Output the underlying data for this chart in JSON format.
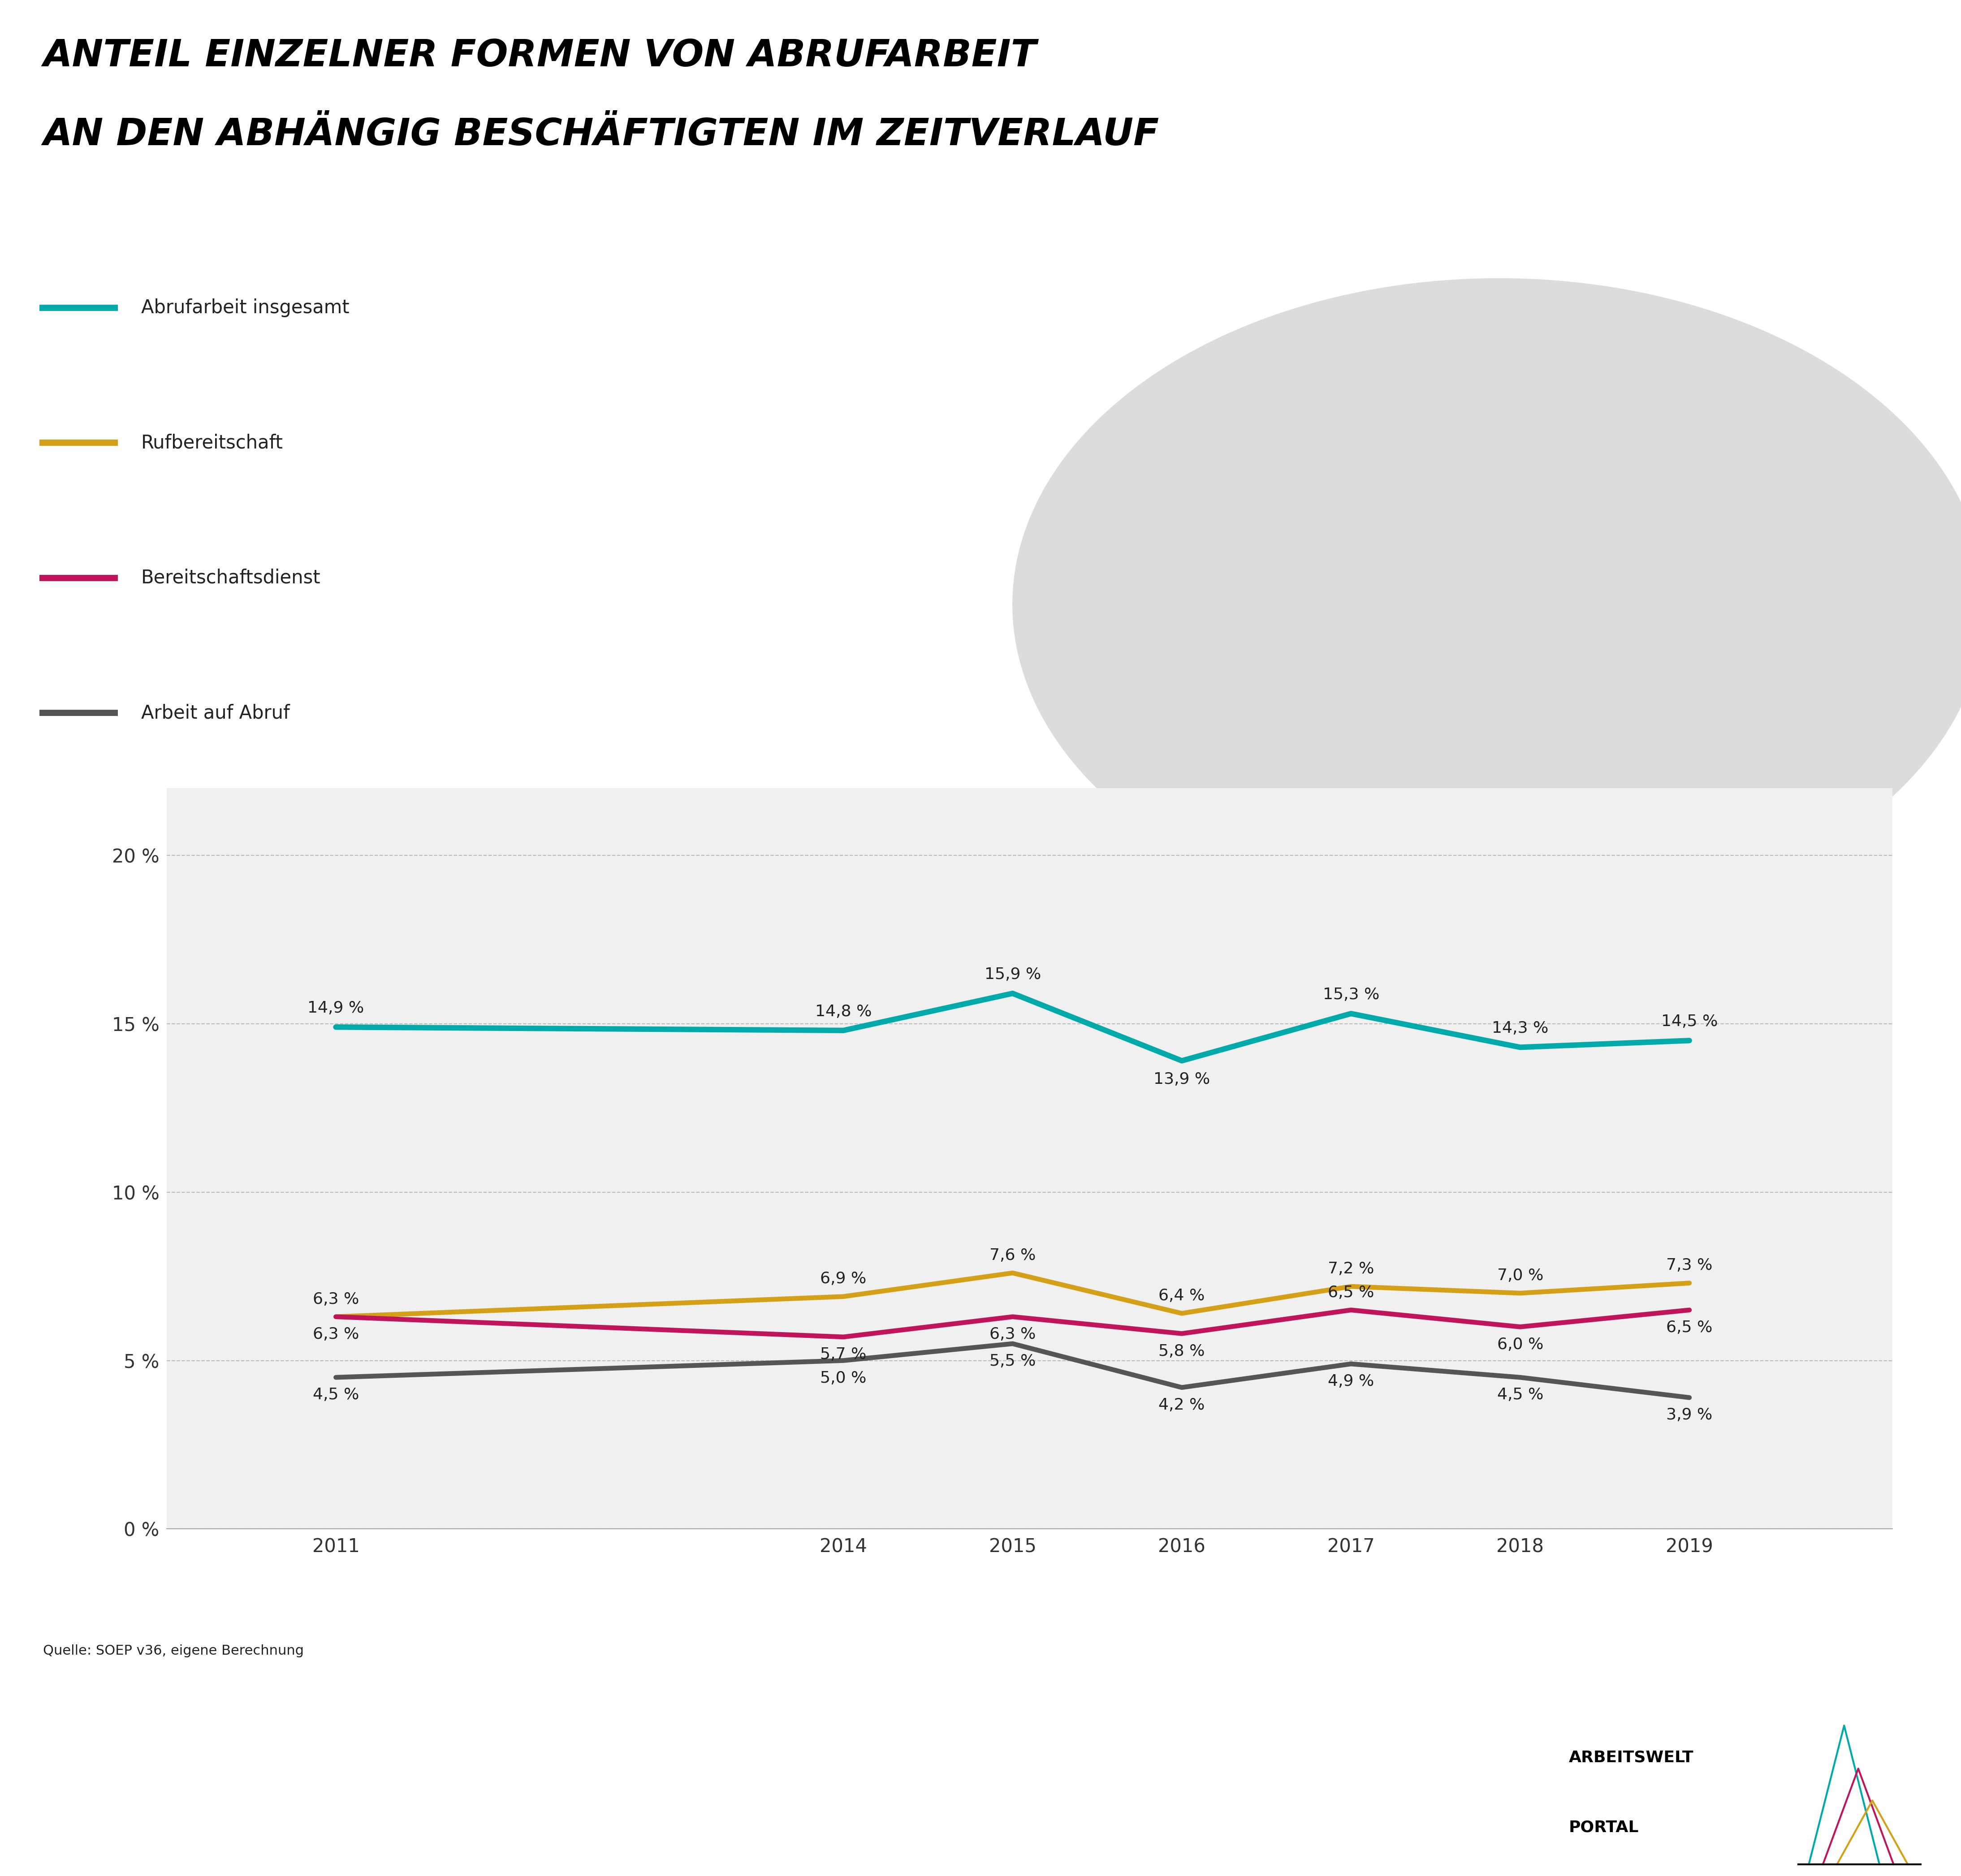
{
  "title_line1": "ANTEIL EINZELNER FORMEN VON ABRUFARBEIT",
  "title_line2": "AN DEN ABHÄNGIG BESCHÄFTIGTEN IM ZEITVERLAUF",
  "years": [
    2011,
    2014,
    2015,
    2016,
    2017,
    2018,
    2019
  ],
  "series_order": [
    "Abrufarbeit insgesamt",
    "Rufbereitschaft",
    "Bereitschaftsdienst",
    "Arbeit auf Abruf"
  ],
  "series": {
    "Abrufarbeit insgesamt": {
      "values": [
        14.9,
        14.8,
        15.9,
        13.9,
        15.3,
        14.3,
        14.5
      ],
      "color": "#00AAAA",
      "linewidth": 4.0
    },
    "Rufbereitschaft": {
      "values": [
        6.3,
        6.9,
        7.6,
        6.4,
        7.2,
        7.0,
        7.3
      ],
      "color": "#D4A017",
      "linewidth": 3.5
    },
    "Bereitschaftsdienst": {
      "values": [
        6.3,
        5.7,
        6.3,
        5.8,
        6.5,
        6.0,
        6.5
      ],
      "color": "#C0155A",
      "linewidth": 3.5
    },
    "Arbeit auf Abruf": {
      "values": [
        4.5,
        5.0,
        5.5,
        4.2,
        4.9,
        4.5,
        3.9
      ],
      "color": "#555555",
      "linewidth": 3.5
    }
  },
  "ylim": [
    0,
    22
  ],
  "yticks": [
    0,
    5,
    10,
    15,
    20
  ],
  "ytick_labels": [
    "0 %",
    "5 %",
    "10 %",
    "15 %",
    "20 %"
  ],
  "background_color": "#F0F0F0",
  "page_bg": "#F0F0F0",
  "header_bg": "#FFFFFF",
  "teal_line_color": "#00AAAA",
  "source_text": "Quelle: SOEP v36, eigene Berechnung",
  "brand_text_line1": "ARBEITSWELT",
  "brand_text_line2": "PORTAL",
  "label_offsets": {
    "Abrufarbeit insgesamt": [
      1,
      1,
      1,
      -1,
      1,
      1,
      1
    ],
    "Rufbereitschaft": [
      1,
      1,
      1,
      1,
      1,
      1,
      1
    ],
    "Bereitschaftsdienst": [
      -1,
      -1,
      -1,
      -1,
      1,
      -1,
      -1
    ],
    "Arbeit auf Abruf": [
      -1,
      -1,
      -1,
      -1,
      -1,
      -1,
      -1
    ]
  }
}
